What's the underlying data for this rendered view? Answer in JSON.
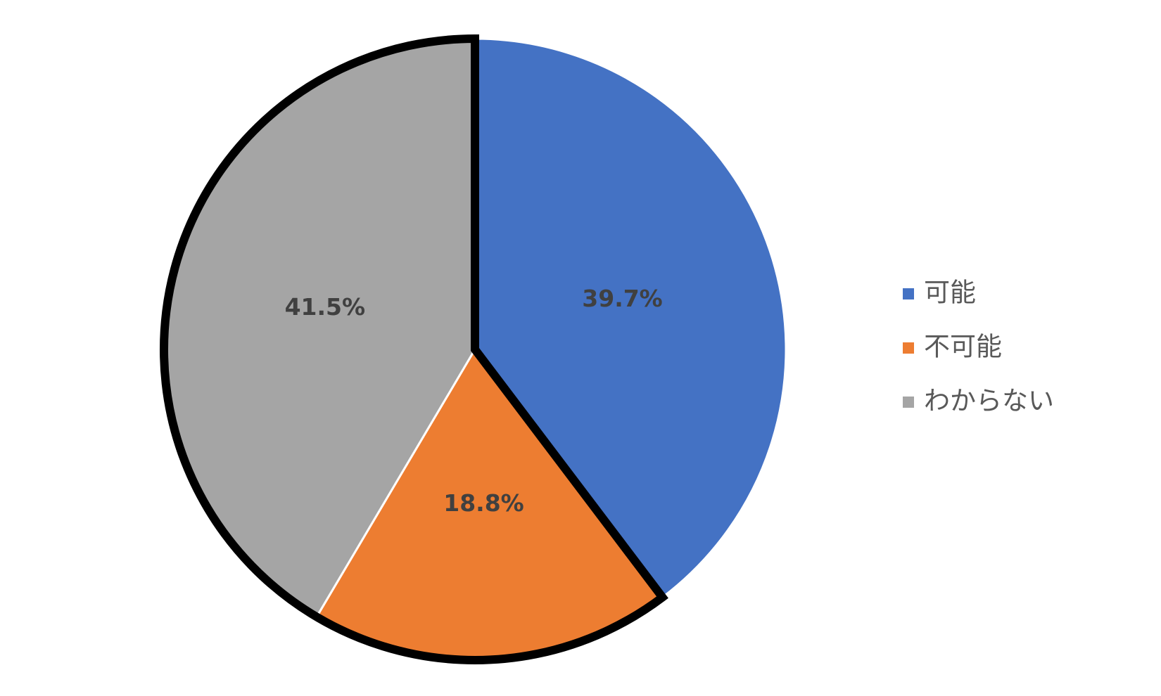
{
  "chart_data": {
    "type": "pie",
    "categories": [
      "可能",
      "不可能",
      "わからない"
    ],
    "values": [
      39.7,
      18.8,
      41.5
    ],
    "value_labels": [
      "39.7%",
      "18.8%",
      "41.5%"
    ],
    "colors": [
      "#4472c4",
      "#ed7d31",
      "#a5a5a5"
    ],
    "legend": "right"
  }
}
